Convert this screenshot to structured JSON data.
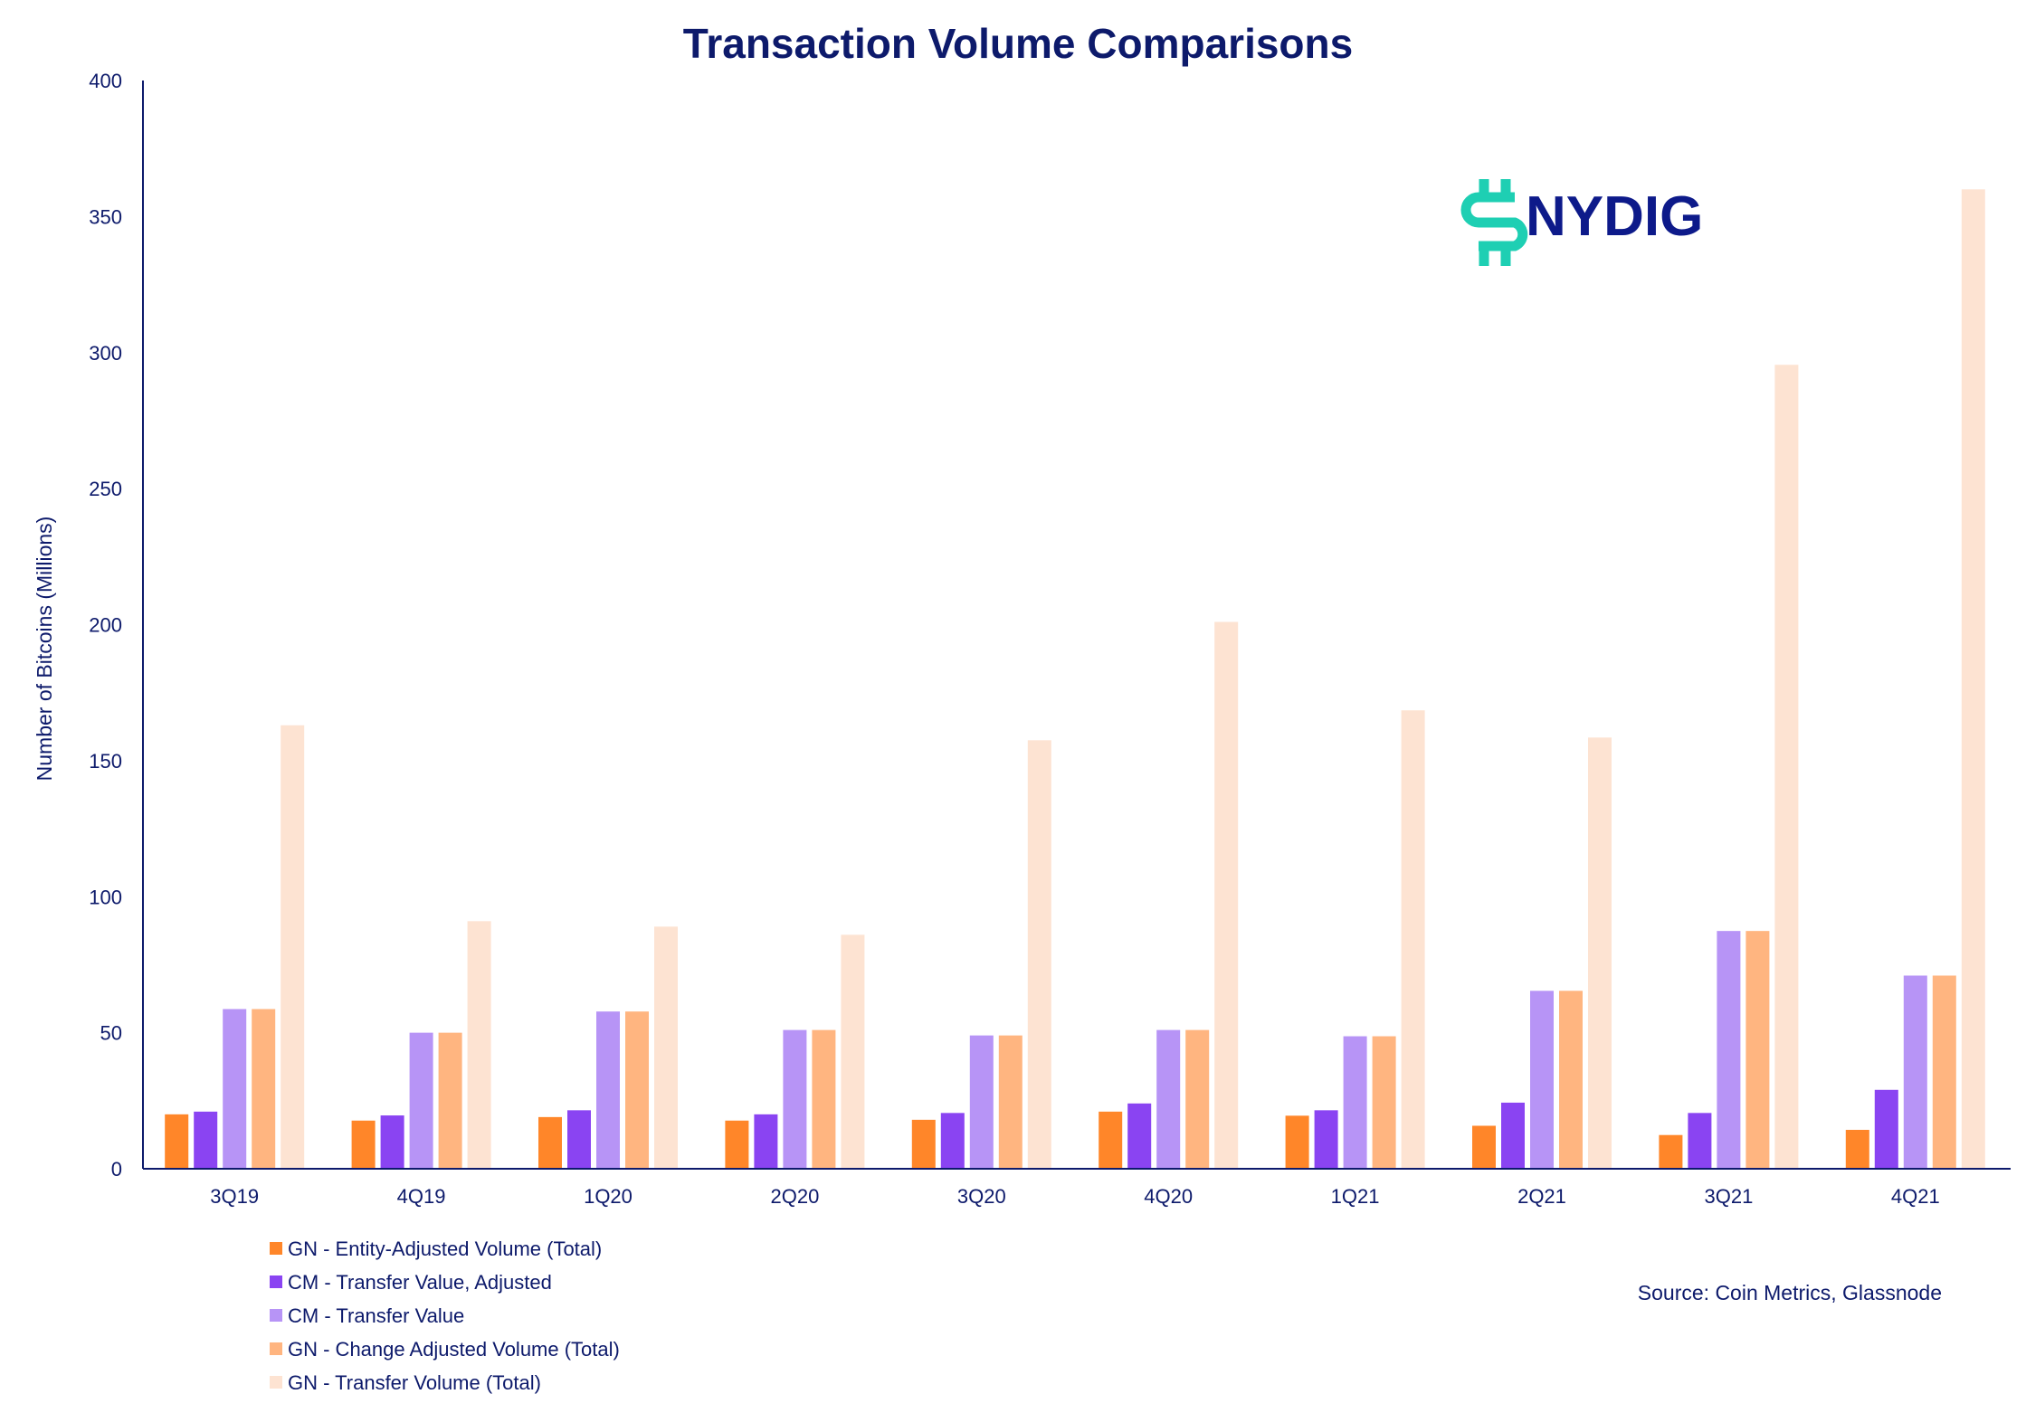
{
  "chart_data": {
    "type": "bar",
    "title": "Transaction Volume Comparisons",
    "xlabel": "",
    "ylabel": "Number of Bitcoins (Millions)",
    "ylim": [
      0,
      400
    ],
    "yticks": [
      0,
      50,
      100,
      150,
      200,
      250,
      300,
      350,
      400
    ],
    "grid": false,
    "legend_position": "bottom-left",
    "categories": [
      "3Q19",
      "4Q19",
      "1Q20",
      "2Q20",
      "3Q20",
      "4Q20",
      "1Q21",
      "2Q21",
      "3Q21",
      "4Q21"
    ],
    "series": [
      {
        "name": "GN - Entity-Adjusted Volume (Total)",
        "color": "#ff8629",
        "values": [
          20,
          17.7,
          19,
          17.7,
          18,
          21,
          19.5,
          15.8,
          12.4,
          14.3
        ]
      },
      {
        "name": "CM - Transfer Value, Adjusted",
        "color": "#8a44f2",
        "values": [
          21,
          19.6,
          21.5,
          20,
          20.5,
          24,
          21.5,
          24.3,
          20.5,
          29
        ]
      },
      {
        "name": "CM - Transfer Value",
        "color": "#b794f6",
        "values": [
          58.7,
          50,
          57.8,
          51,
          49,
          51,
          48.7,
          65.4,
          87.4,
          71
        ]
      },
      {
        "name": "GN - Change Adjusted Volume (Total)",
        "color": "#ffb580",
        "values": [
          58.7,
          50,
          57.8,
          51,
          49,
          51,
          48.7,
          65.4,
          87.4,
          71
        ]
      },
      {
        "name": "GN - Transfer Volume (Total)",
        "color": "#fde3d2",
        "values": [
          163,
          91,
          89,
          86,
          157.5,
          201,
          168.5,
          158.5,
          295.5,
          360
        ]
      }
    ],
    "source": "Source: Coin Metrics, Glassnode"
  },
  "logo": {
    "text": "NYDIG",
    "icon": "nydig-logo-icon",
    "icon_color": "#1ecfb3",
    "text_color": "#0d1a8a"
  },
  "colors": {
    "text": "#0d1a6b",
    "axis": "#0d1a6b"
  }
}
